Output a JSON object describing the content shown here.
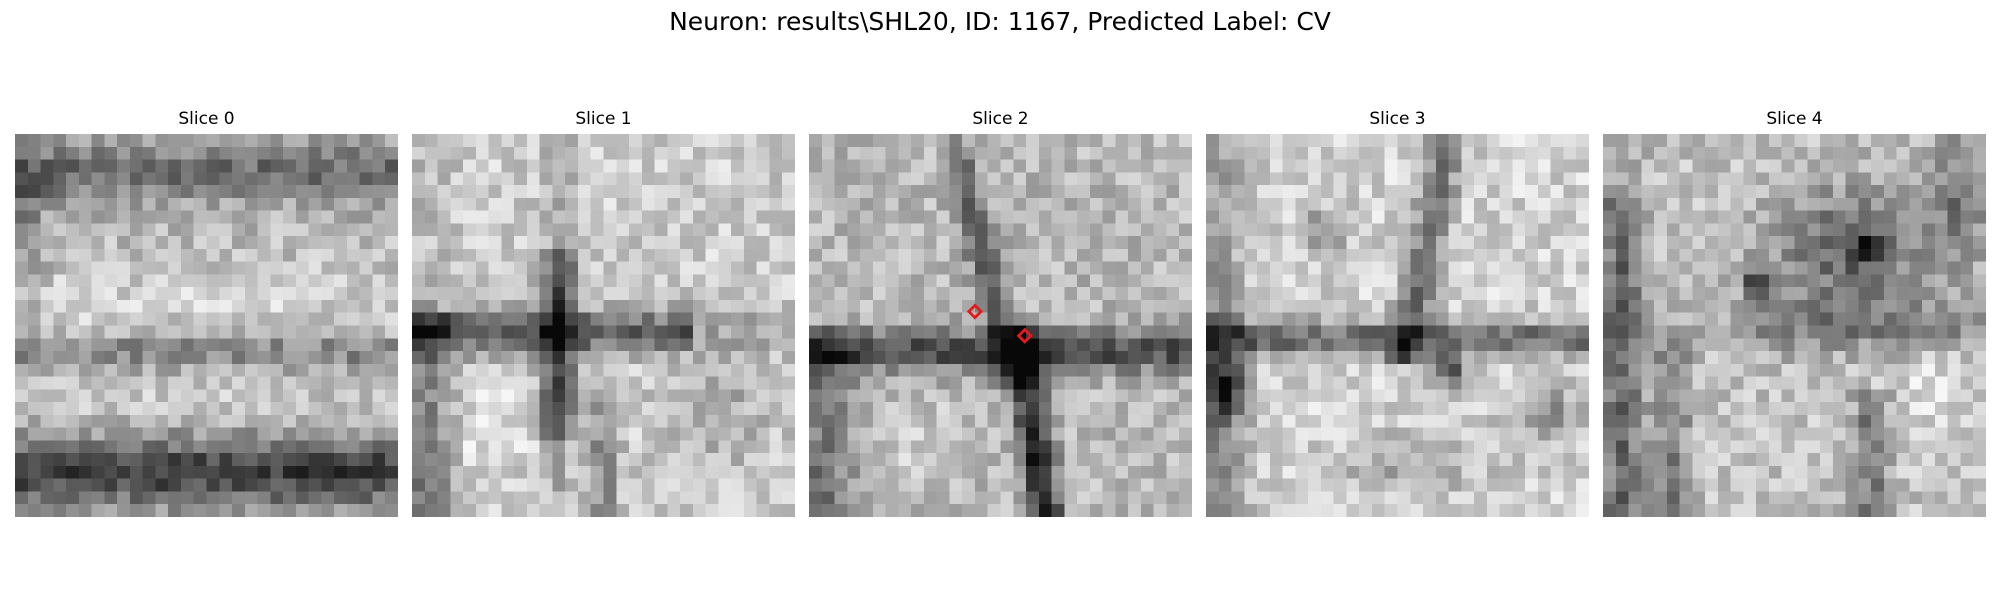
{
  "figure": {
    "title": "Neuron: results\\SHL20, ID: 1167, Predicted Label: CV"
  },
  "slices": [
    {
      "title": "Slice 0",
      "pattern": "horizontal-bands",
      "seed": 11,
      "markers": []
    },
    {
      "title": "Slice 1",
      "pattern": "cross-junction",
      "seed": 23,
      "markers": []
    },
    {
      "title": "Slice 2",
      "pattern": "diagonal-membrane",
      "seed": 37,
      "markers": [
        {
          "name": "marker-a",
          "col": 13.0,
          "row": 13.9
        },
        {
          "name": "marker-b",
          "col": 16.9,
          "row": 15.8
        }
      ]
    },
    {
      "title": "Slice 3",
      "pattern": "cells-bright",
      "seed": 51,
      "markers": []
    },
    {
      "title": "Slice 4",
      "pattern": "dark-top-right",
      "seed": 67,
      "markers": []
    }
  ],
  "colors": {
    "marker": "#e31a1c"
  },
  "colormap": "gray"
}
